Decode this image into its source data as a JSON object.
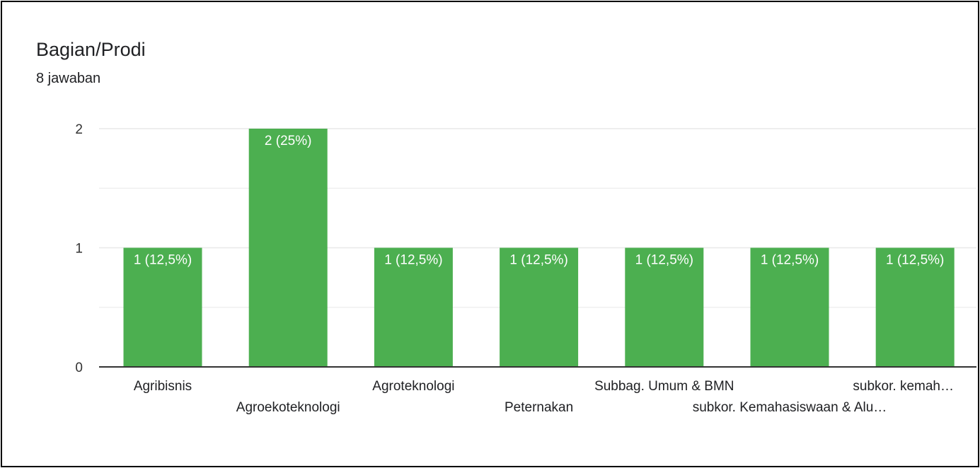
{
  "question": {
    "title": "Bagian/Prodi",
    "response_count": "8 jawaban"
  },
  "chart_data": {
    "type": "bar",
    "categories": [
      "Agribisnis",
      "Agroekoteknologi",
      "Agroteknologi",
      "Peternakan",
      "Subbag. Umum & BMN",
      "subkor. Kemahasiswaan & Alu…",
      "subkor. kemah…"
    ],
    "values": [
      1,
      2,
      1,
      1,
      1,
      1,
      1
    ],
    "data_labels": [
      "1 (12,5%)",
      "2 (25%)",
      "1 (12,5%)",
      "1 (12,5%)",
      "1 (12,5%)",
      "1 (12,5%)",
      "1 (12,5%)"
    ],
    "ylim": [
      0,
      2
    ],
    "yticks": [
      0,
      1,
      2
    ],
    "grid": true,
    "colors": {
      "bar": "#4caf50",
      "grid": "#e8e8e8",
      "axis": "#333333",
      "label": "#202124",
      "data_label": "#ffffff"
    }
  }
}
